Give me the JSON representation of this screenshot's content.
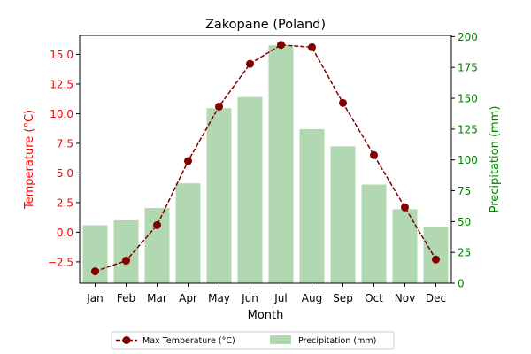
{
  "chart_data": {
    "type": "bar+line",
    "title": "Zakopane (Poland)",
    "xlabel": "Month",
    "categories": [
      "Jan",
      "Feb",
      "Mar",
      "Apr",
      "May",
      "Jun",
      "Jul",
      "Aug",
      "Sep",
      "Oct",
      "Nov",
      "Dec"
    ],
    "y_left": {
      "label": "Temperature (°C)",
      "color": "#ff0000",
      "ticks": [
        "−2.5",
        "0.0",
        "2.5",
        "5.0",
        "7.5",
        "10.0",
        "12.5",
        "15.0"
      ],
      "range": [
        -4.3,
        16.6
      ]
    },
    "y_right": {
      "label": "Precipitation (mm)",
      "color": "#008000",
      "ticks": [
        "0",
        "25",
        "50",
        "75",
        "100",
        "125",
        "150",
        "175",
        "200"
      ],
      "range": [
        0,
        201
      ]
    },
    "series": [
      {
        "name": "Max Temperature (°C)",
        "kind": "line",
        "axis": "left",
        "color": "#800000",
        "values": [
          -3.3,
          -2.4,
          0.6,
          6.0,
          10.6,
          14.2,
          15.8,
          15.6,
          10.9,
          6.5,
          2.1,
          -2.3
        ]
      },
      {
        "name": "Precipitation (mm)",
        "kind": "bar",
        "axis": "right",
        "color": "#b2d8b2",
        "values": [
          47,
          51,
          61,
          81,
          142,
          151,
          193,
          125,
          111,
          80,
          60,
          46
        ]
      }
    ],
    "legend": "bottom-center",
    "grid": false
  }
}
